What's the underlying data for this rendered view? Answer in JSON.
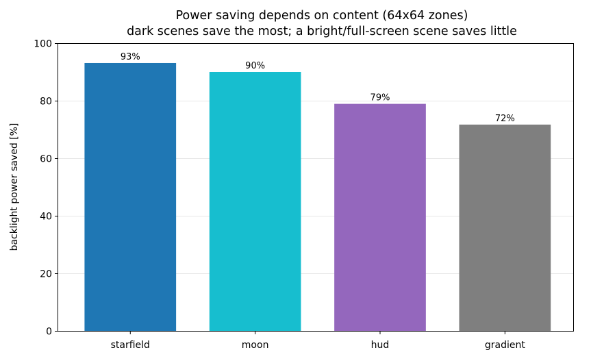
{
  "chart_data": {
    "type": "bar",
    "title": "Power saving depends on content (64x64 zones)",
    "subtitle": "dark scenes save the most; a bright/full-screen scene saves little",
    "xlabel": "",
    "ylabel": "backlight power saved [%]",
    "categories": [
      "starfield",
      "moon",
      "hud",
      "gradient"
    ],
    "values": [
      93.1,
      90.0,
      78.9,
      71.7
    ],
    "data_labels": [
      "93%",
      "90%",
      "79%",
      "72%"
    ],
    "colors": [
      "#1f77b4",
      "#17becf",
      "#9467bd",
      "#7f7f7f"
    ],
    "ylim": [
      0,
      100
    ],
    "yticks": [
      0,
      20,
      40,
      60,
      80,
      100
    ],
    "grid": "y-major",
    "legend": "none"
  }
}
